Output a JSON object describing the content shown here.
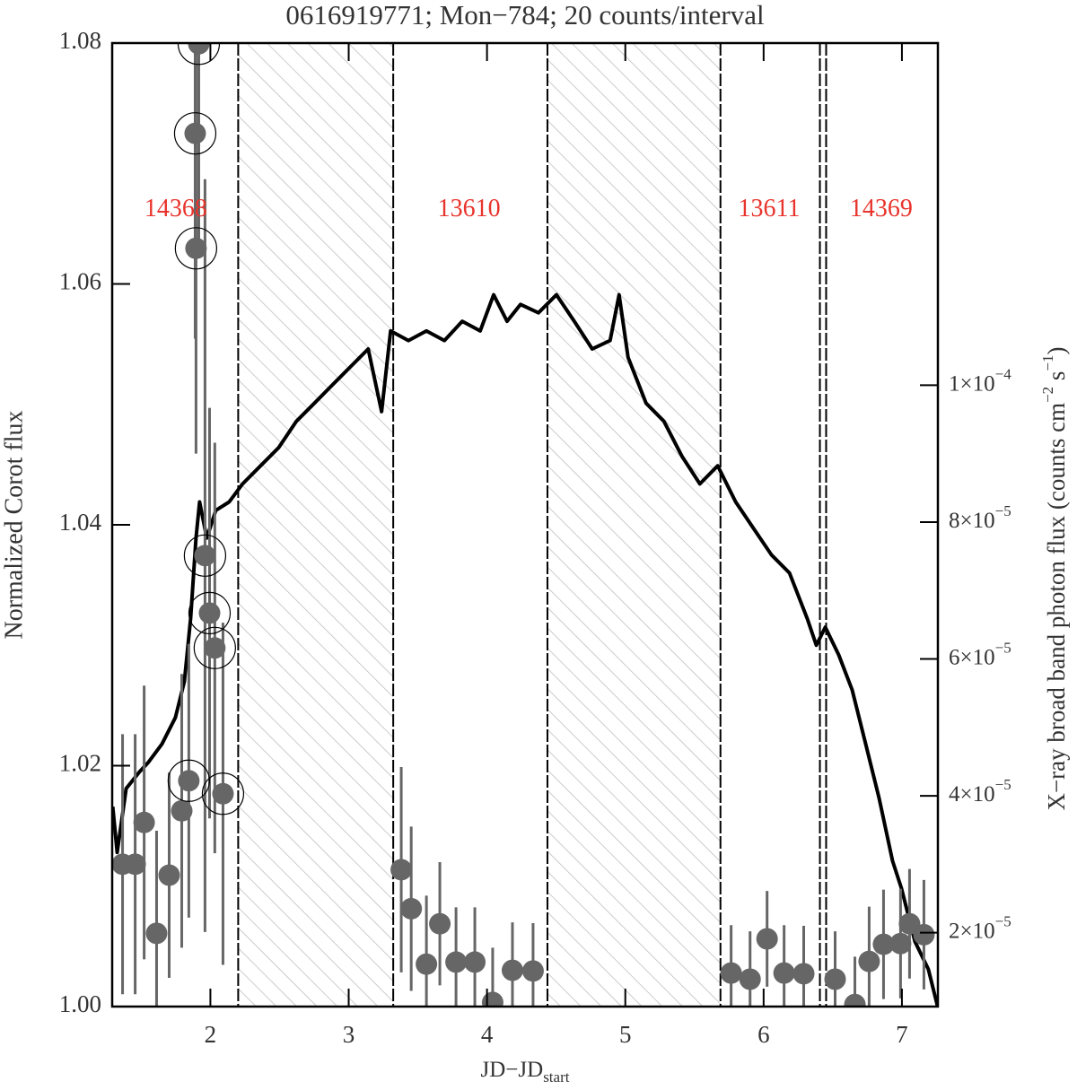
{
  "chart_data": {
    "type": "line",
    "title": "0616919771; Mon−784; 20 counts/interval",
    "xlabel": {
      "text": "JD−JD",
      "subscript": "start"
    },
    "ylabel": "Normalized Corot flux",
    "y2label": {
      "parts": [
        "X−ray broad band photon flux (counts cm",
        "−2",
        " s",
        "−1",
        ")"
      ]
    },
    "xlim": [
      1.29,
      7.26
    ],
    "xticks": [
      2,
      3,
      4,
      5,
      6,
      7
    ],
    "ylim": [
      1.0,
      1.08
    ],
    "yticks": [
      {
        "value": 1.0,
        "label": "1.00"
      },
      1.02,
      1.04,
      1.06,
      1.08
    ],
    "y2lim": [
      9.2e-06,
      0.00015
    ],
    "y2ticks": [
      {
        "value": 2e-05,
        "label": "2×10",
        "exponent": "−5"
      },
      {
        "value": 4e-05,
        "label": "4×10",
        "exponent": "−5"
      },
      {
        "value": 6e-05,
        "label": "6×10",
        "exponent": "−5"
      },
      {
        "value": 8e-05,
        "label": "8×10",
        "exponent": "−5"
      },
      {
        "value": 0.0001,
        "label": "1×10",
        "exponent": "−4"
      }
    ],
    "hatched_regions": [
      [
        2.201,
        3.322
      ],
      [
        4.437,
        5.688
      ]
    ],
    "vlines": [
      2.201,
      3.322,
      4.437,
      5.688,
      6.407,
      6.452
    ],
    "annotations": [
      {
        "text": "14368",
        "x": 1.75,
        "y": 1.0661,
        "color": "#e8342c"
      },
      {
        "text": "13610",
        "x": 3.87,
        "y": 1.0661,
        "color": "#e8342c"
      },
      {
        "text": "13611",
        "x": 6.04,
        "y": 1.0661,
        "color": "#e8342c"
      },
      {
        "text": "14369",
        "x": 6.85,
        "y": 1.0661,
        "color": "#e8342c"
      }
    ],
    "series": [
      {
        "type": "line",
        "color": "#000000",
        "x": [
          1.294,
          1.326,
          1.391,
          1.488,
          1.553,
          1.65,
          1.747,
          1.812,
          1.857,
          1.896,
          1.922,
          1.974,
          2.039,
          2.136,
          2.233,
          2.363,
          2.493,
          2.622,
          2.752,
          2.881,
          3.011,
          3.141,
          3.238,
          3.303,
          3.432,
          3.562,
          3.692,
          3.821,
          3.951,
          4.048,
          4.145,
          4.242,
          4.372,
          4.502,
          4.631,
          4.761,
          4.89,
          4.955,
          5.02,
          5.15,
          5.279,
          5.409,
          5.539,
          5.668,
          5.798,
          5.927,
          6.057,
          6.187,
          6.316,
          6.381,
          6.446,
          6.543,
          6.64,
          6.738,
          6.835,
          6.932,
          6.997,
          7.094,
          7.191,
          7.256
        ],
        "values": [
          1.0166,
          1.0128,
          1.0181,
          1.0195,
          1.0203,
          1.0218,
          1.024,
          1.027,
          1.0322,
          1.0389,
          1.0419,
          1.0389,
          1.0412,
          1.0419,
          1.0434,
          1.0449,
          1.0464,
          1.0486,
          1.0501,
          1.0516,
          1.0531,
          1.0546,
          1.0494,
          1.0561,
          1.0553,
          1.0561,
          1.0553,
          1.0569,
          1.0561,
          1.0591,
          1.0569,
          1.0583,
          1.0576,
          1.0591,
          1.0569,
          1.0546,
          1.0553,
          1.0591,
          1.0539,
          1.0501,
          1.0486,
          1.0457,
          1.0434,
          1.0449,
          1.0419,
          1.0397,
          1.0375,
          1.036,
          1.0322,
          1.03,
          1.0315,
          1.0292,
          1.0263,
          1.0218,
          1.0173,
          1.0121,
          1.0098,
          1.0054,
          1.0031,
          1.0001
        ]
      },
      {
        "type": "scatter",
        "axis": "y2",
        "color": "#666666",
        "x": [
          1.365,
          1.456,
          1.521,
          1.611,
          1.702,
          1.793,
          1.844,
          1.896,
          1.89,
          1.916,
          1.961,
          1.994,
          2.032,
          2.091,
          3.38,
          3.452,
          3.562,
          3.659,
          3.776,
          3.912,
          4.041,
          4.184,
          4.333,
          5.765,
          5.902,
          6.025,
          6.148,
          6.29,
          6.517,
          6.66,
          6.763,
          6.867,
          6.99,
          7.055,
          7.159
        ],
        "values": [
          3e-05,
          3e-05,
          3.61e-05,
          1.99e-05,
          2.84e-05,
          3.78e-05,
          4.22e-05,
          0.00012,
          0.0001368,
          0.0001499,
          7.51e-05,
          6.67e-05,
          6.16e-05,
          4.03e-05,
          2.92e-05,
          2.35e-05,
          1.54e-05,
          2.13e-05,
          1.57e-05,
          1.57e-05,
          9.8e-06,
          1.45e-05,
          1.44e-05,
          1.41e-05,
          1.32e-05,
          1.91e-05,
          1.41e-05,
          1.4e-05,
          1.32e-05,
          9.5e-06,
          1.58e-05,
          1.83e-05,
          1.84e-05,
          2.13e-05,
          1.97e-05
        ],
        "errors": [
          1.9e-05,
          1.9e-05,
          2e-05,
          1.5e-05,
          1.5e-05,
          2e-05,
          2e-05,
          3e-05,
          3e-05,
          3e-05,
          5.5e-05,
          3e-05,
          3e-05,
          2.5e-05,
          1.5e-05,
          1.2e-05,
          1e-05,
          9e-06,
          8e-06,
          8e-06,
          8e-06,
          7e-06,
          7e-06,
          7e-06,
          7e-06,
          7e-06,
          7e-06,
          7e-06,
          7e-06,
          7e-06,
          8e-06,
          8e-06,
          8e-06,
          8e-06,
          8e-06
        ],
        "circled": [
          false,
          false,
          false,
          false,
          false,
          false,
          true,
          true,
          true,
          true,
          true,
          true,
          true,
          true,
          false,
          false,
          false,
          false,
          false,
          false,
          false,
          false,
          false,
          false,
          false,
          false,
          false,
          false,
          false,
          false,
          false,
          false,
          false,
          false,
          false
        ]
      }
    ]
  }
}
